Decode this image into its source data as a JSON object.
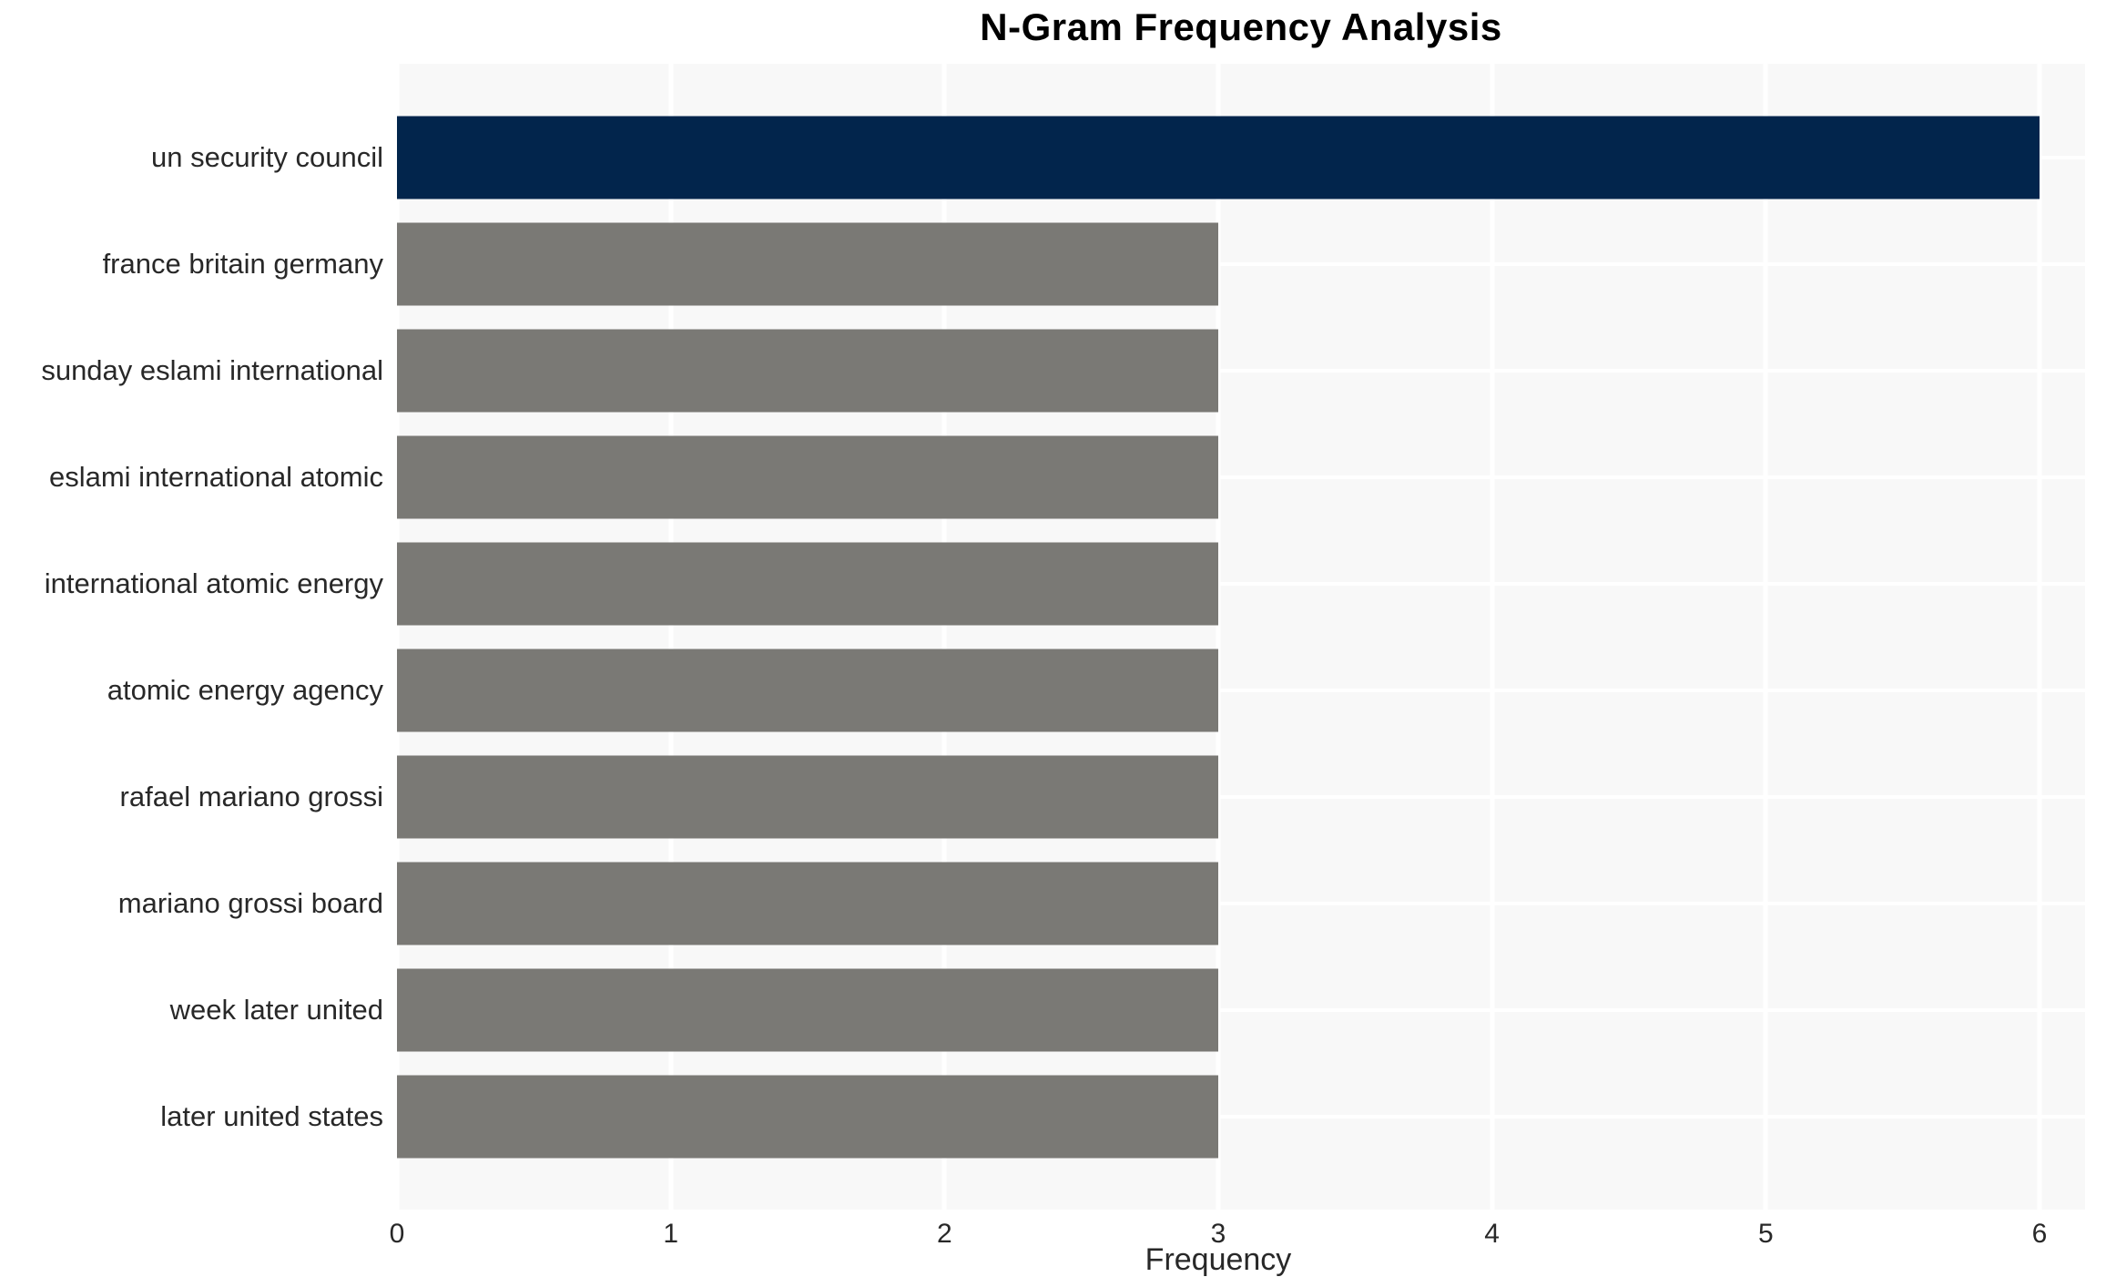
{
  "chart_data": {
    "type": "bar",
    "orientation": "horizontal",
    "title": "N-Gram Frequency Analysis",
    "xlabel": "Frequency",
    "ylabel": "",
    "categories": [
      "un security council",
      "france britain germany",
      "sunday eslami international",
      "eslami international atomic",
      "international atomic energy",
      "atomic energy agency",
      "rafael mariano grossi",
      "mariano grossi board",
      "week later united",
      "later united states"
    ],
    "values": [
      6,
      3,
      3,
      3,
      3,
      3,
      3,
      3,
      3,
      3
    ],
    "xticks": [
      0,
      1,
      2,
      3,
      4,
      5,
      6
    ],
    "xlim": [
      0,
      6
    ],
    "bar_colors": [
      "#02254c",
      "#7a7975",
      "#7a7975",
      "#7a7975",
      "#7a7975",
      "#7a7975",
      "#7a7975",
      "#7a7975",
      "#7a7975",
      "#7a7975"
    ],
    "highlight_color": "#02254c",
    "default_bar_color": "#7a7975",
    "plot_background_color": "#f8f8f8",
    "grid_color": "#ffffff",
    "grid": true,
    "legend": false
  }
}
